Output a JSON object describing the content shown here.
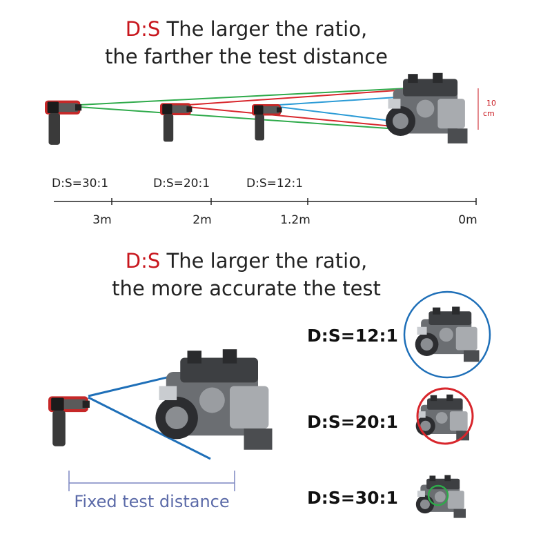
{
  "top": {
    "title_prefix": "D:S",
    "title_line1": "The larger the ratio,",
    "title_line2": "the farther the test distance",
    "spot_size": "10",
    "spot_unit": "cm",
    "ratios": [
      "D:S=30:1",
      "D:S=20:1",
      "D:S=12:1"
    ],
    "distances": [
      "3m",
      "2m",
      "1.2m",
      "0m"
    ]
  },
  "bottom": {
    "title_prefix": "D:S",
    "title_line1": "The larger the ratio,",
    "title_line2": "the more accurate the test",
    "ratios": [
      "D:S=12:1",
      "D:S=20:1",
      "D:S=30:1"
    ],
    "distance_label": "Fixed test distance"
  }
}
